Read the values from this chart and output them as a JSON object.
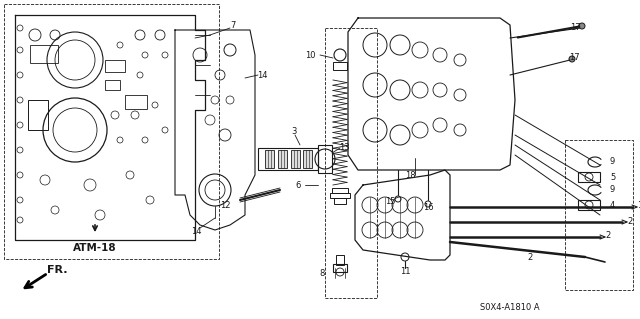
{
  "background_color": "#ffffff",
  "line_color": "#1a1a1a",
  "text_color": "#1a1a1a",
  "atm_label": "ATM-18",
  "fr_label": "FR.",
  "diagram_code": "S0X4-A1810 A",
  "figsize": [
    6.4,
    3.19
  ],
  "dpi": 100
}
